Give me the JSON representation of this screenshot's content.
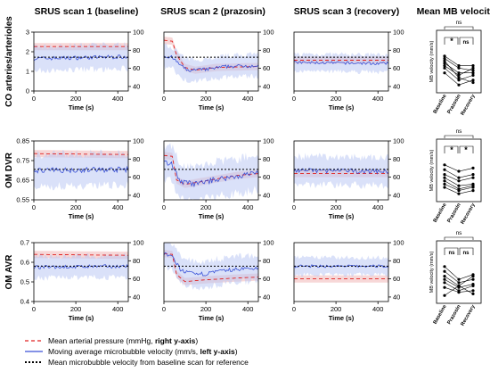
{
  "chart_data": {
    "type": "line",
    "columns": [
      {
        "title": "SRUS scan 1 (baseline)"
      },
      {
        "title": "SRUS scan 2 (prazosin)"
      },
      {
        "title": "SRUS scan 3 (recovery)"
      },
      {
        "title": "Mean MB velocities"
      }
    ],
    "rows": [
      {
        "label": "CO arteries/arterioles"
      },
      {
        "label": "OM DVR"
      },
      {
        "label": "OM AVR"
      }
    ],
    "xlabel": "Time (s)",
    "xlim": [
      0,
      450
    ],
    "xticks": [
      "0",
      "200",
      "400"
    ],
    "right_yticks": [
      "40",
      "60",
      "80",
      "100"
    ],
    "right_ylim": [
      35,
      100
    ],
    "row_ylims": [
      [
        0,
        3
      ],
      [
        0.55,
        0.85
      ],
      [
        0.4,
        0.7
      ]
    ],
    "row_yticks": [
      [
        "0",
        "1",
        "2",
        "3"
      ],
      [
        "0.55",
        "0.65",
        "0.75",
        "0.85"
      ],
      [
        "0.4",
        "0.5",
        "0.6",
        "0.7"
      ]
    ],
    "panels": [
      [
        {
          "mb_mean": 1.75,
          "mb_sd": 0.55,
          "map": [
            [
              0,
              84
            ],
            [
              450,
              84
            ]
          ],
          "mb_pts": [
            [
              0,
              1.65
            ],
            [
              450,
              1.75
            ]
          ],
          "ref": 1.72
        },
        {
          "mb_mean": 1.3,
          "mb_sd": 0.5,
          "map": [
            [
              0,
              91
            ],
            [
              40,
              90
            ],
            [
              60,
              75
            ],
            [
              100,
              61
            ],
            [
              150,
              58
            ],
            [
              250,
              61
            ],
            [
              450,
              62
            ]
          ],
          "mb_pts": [
            [
              0,
              1.8
            ],
            [
              40,
              1.7
            ],
            [
              70,
              1.4
            ],
            [
              110,
              1.05
            ],
            [
              200,
              1.1
            ],
            [
              300,
              1.25
            ],
            [
              450,
              1.3
            ]
          ],
          "ref": 1.72
        },
        {
          "mb_mean": 1.45,
          "mb_sd": 0.4,
          "map": [
            [
              0,
              69
            ],
            [
              450,
              69
            ]
          ],
          "mb_pts": [
            [
              0,
              1.45
            ],
            [
              450,
              1.4
            ]
          ],
          "ref": 1.72
        }
      ],
      [
        {
          "mb_mean": 0.705,
          "mb_sd": 0.075,
          "map": [
            [
              0,
              86
            ],
            [
              450,
              85
            ]
          ],
          "mb_pts": [
            [
              0,
              0.7
            ],
            [
              450,
              0.705
            ]
          ],
          "ref": 0.705
        },
        {
          "mb_mean": 0.68,
          "mb_sd": 0.08,
          "map": [
            [
              0,
              84
            ],
            [
              40,
              83
            ],
            [
              60,
              57
            ],
            [
              100,
              52
            ],
            [
              200,
              56
            ],
            [
              350,
              62
            ],
            [
              450,
              64
            ]
          ],
          "mb_pts": [
            [
              0,
              0.74
            ],
            [
              40,
              0.73
            ],
            [
              80,
              0.64
            ],
            [
              150,
              0.63
            ],
            [
              250,
              0.655
            ],
            [
              350,
              0.67
            ],
            [
              450,
              0.69
            ]
          ],
          "ref": 0.705
        },
        {
          "mb_mean": 0.695,
          "mb_sd": 0.065,
          "map": [
            [
              0,
              64
            ],
            [
              450,
              64
            ]
          ],
          "mb_pts": [
            [
              0,
              0.7
            ],
            [
              450,
              0.695
            ]
          ],
          "ref": 0.705
        }
      ],
      [
        {
          "mb_mean": 0.58,
          "mb_sd": 0.05,
          "map": [
            [
              0,
              87
            ],
            [
              450,
              86
            ]
          ],
          "mb_pts": [
            [
              0,
              0.575
            ],
            [
              450,
              0.58
            ]
          ],
          "ref": 0.58
        },
        {
          "mb_mean": 0.55,
          "mb_sd": 0.06,
          "map": [
            [
              0,
              88
            ],
            [
              40,
              87
            ],
            [
              60,
              65
            ],
            [
              100,
              57
            ],
            [
              200,
              59
            ],
            [
              350,
              61
            ],
            [
              450,
              62
            ]
          ],
          "mb_pts": [
            [
              0,
              0.64
            ],
            [
              40,
              0.63
            ],
            [
              80,
              0.56
            ],
            [
              150,
              0.535
            ],
            [
              250,
              0.55
            ],
            [
              350,
              0.565
            ],
            [
              450,
              0.57
            ]
          ],
          "ref": 0.58
        },
        {
          "mb_mean": 0.58,
          "mb_sd": 0.04,
          "map": [
            [
              0,
              60
            ],
            [
              450,
              60
            ]
          ],
          "mb_pts": [
            [
              0,
              0.58
            ],
            [
              450,
              0.58
            ]
          ],
          "ref": 0.58
        }
      ]
    ],
    "mb_panels": [
      {
        "ylabel": "MB velocity (mm/s)",
        "categories": [
          "Baseline",
          "Prazosin",
          "Recovery"
        ],
        "sig_top": "ns",
        "sig_left": "*",
        "sig_right": "ns",
        "subjects": [
          [
            2.0,
            1.6,
            1.6
          ],
          [
            1.9,
            1.5,
            1.4
          ],
          [
            1.7,
            1.3,
            1.3
          ],
          [
            1.6,
            1.2,
            1.5
          ],
          [
            1.5,
            1.0,
            1.2
          ],
          [
            1.3,
            0.8,
            1.0
          ],
          [
            1.8,
            1.1,
            0.9
          ]
        ]
      },
      {
        "ylabel": "MB velocity (mm/s)",
        "categories": [
          "Baseline",
          "Prazosin",
          "Recovery"
        ],
        "sig_top": "ns",
        "sig_left": "*",
        "sig_right": "*",
        "subjects": [
          [
            0.78,
            0.74,
            0.76
          ],
          [
            0.75,
            0.7,
            0.72
          ],
          [
            0.72,
            0.68,
            0.7
          ],
          [
            0.7,
            0.65,
            0.66
          ],
          [
            0.68,
            0.63,
            0.65
          ],
          [
            0.66,
            0.62,
            0.64
          ],
          [
            0.64,
            0.6,
            0.62
          ]
        ]
      },
      {
        "ylabel": "MB velocity (mm/s)",
        "categories": [
          "Baseline",
          "Prazosin",
          "Recovery"
        ],
        "sig_top": "ns",
        "sig_left": "ns",
        "sig_right": "ns",
        "subjects": [
          [
            0.68,
            0.6,
            0.63
          ],
          [
            0.65,
            0.58,
            0.6
          ],
          [
            0.62,
            0.56,
            0.62
          ],
          [
            0.6,
            0.55,
            0.57
          ],
          [
            0.58,
            0.53,
            0.56
          ],
          [
            0.55,
            0.52,
            0.53
          ],
          [
            0.5,
            0.56,
            0.51
          ]
        ]
      }
    ],
    "legend": [
      {
        "label": "Mean arterial pressure (mmHg, ",
        "bold": "right y-axis",
        "after": ")",
        "color": "#e02020",
        "dash": "4,3"
      },
      {
        "label": "Moving average microbubble velocity (mm/s, ",
        "bold": "left y-axis",
        "after": ")",
        "color": "#3a52d8",
        "dash": ""
      },
      {
        "label": "Mean microbubble velocity from baseline scan for reference",
        "bold": "",
        "after": "",
        "color": "#000000",
        "dash": "2,2"
      }
    ]
  }
}
